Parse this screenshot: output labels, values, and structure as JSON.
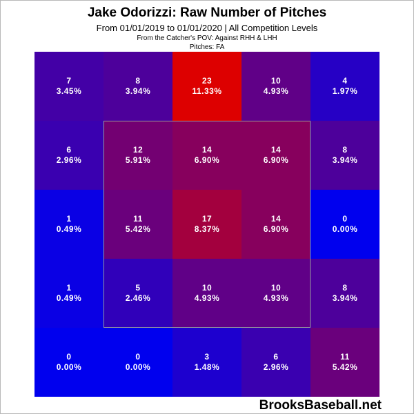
{
  "header": {
    "title": "Jake Odorizzi: Raw Number of Pitches",
    "subtitle": "From 01/01/2019 to 01/01/2020 | All Competition Levels",
    "pov": "From the Catcher's POV:  Against RHH & LHH",
    "pitches": "Pitches:  FA"
  },
  "brand": "BrooksBaseball.net",
  "colors": {
    "low": "#0000ee",
    "high": "#dd0000"
  },
  "chart_data": {
    "type": "heatmap",
    "title": "Jake Odorizzi: Raw Number of Pitches",
    "rows": 5,
    "cols": 5,
    "strike_zone": "inner 3x3",
    "counts": [
      [
        7,
        8,
        23,
        10,
        4
      ],
      [
        6,
        12,
        14,
        14,
        8
      ],
      [
        1,
        11,
        17,
        14,
        0
      ],
      [
        1,
        5,
        10,
        10,
        8
      ],
      [
        0,
        0,
        3,
        6,
        11
      ]
    ],
    "percents": [
      [
        "3.45%",
        "3.94%",
        "11.33%",
        "4.93%",
        "1.97%"
      ],
      [
        "2.96%",
        "5.91%",
        "6.90%",
        "6.90%",
        "3.94%"
      ],
      [
        "0.49%",
        "5.42%",
        "8.37%",
        "6.90%",
        "0.00%"
      ],
      [
        "0.49%",
        "2.46%",
        "4.93%",
        "4.93%",
        "3.94%"
      ],
      [
        "0.00%",
        "0.00%",
        "1.48%",
        "2.96%",
        "5.42%"
      ]
    ]
  }
}
